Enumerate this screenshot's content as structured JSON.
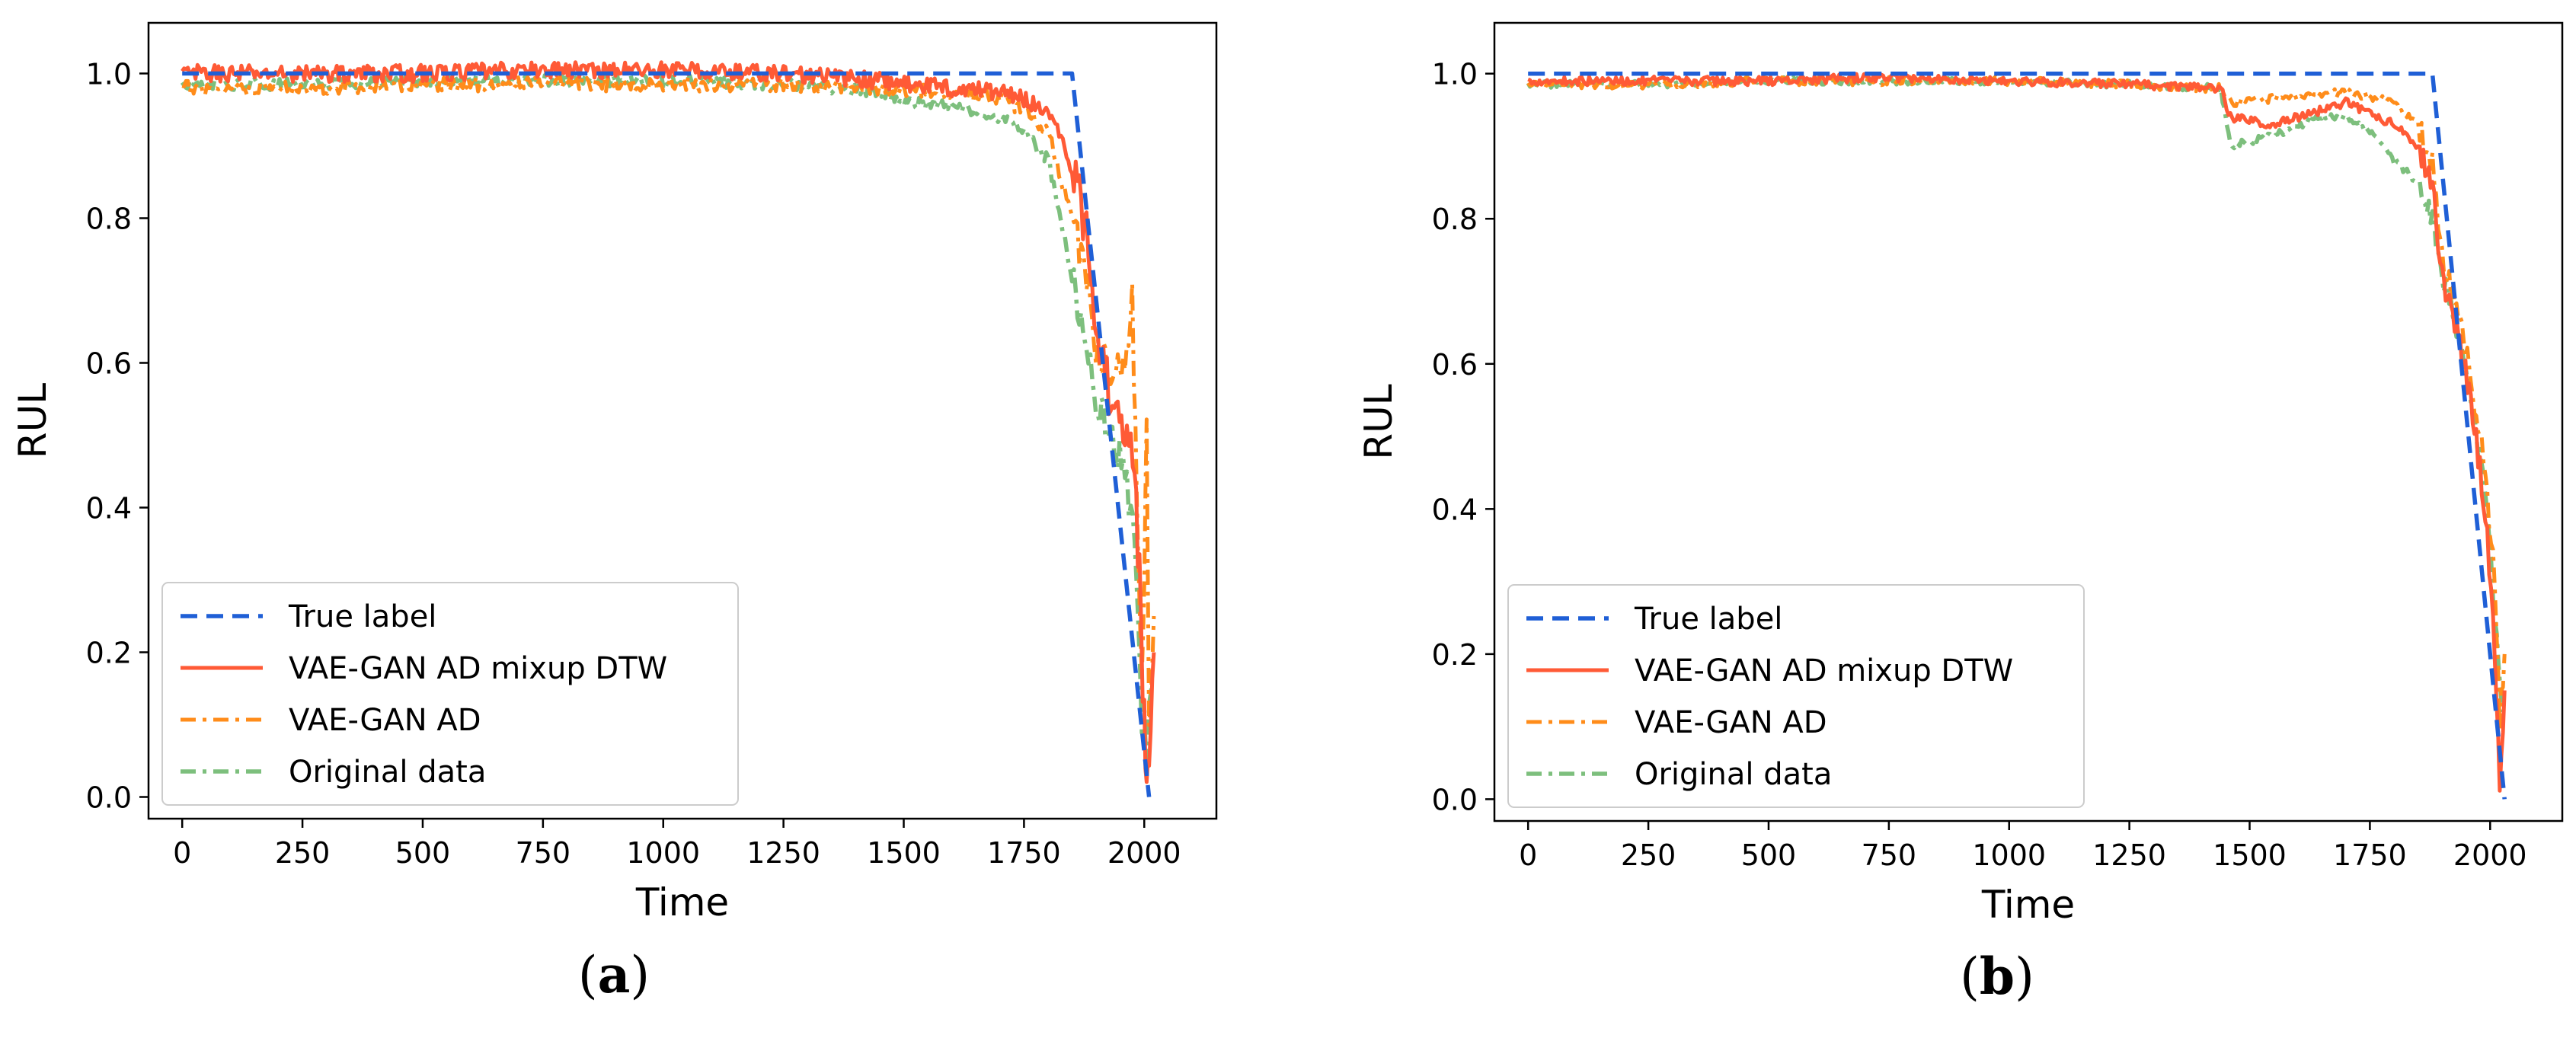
{
  "chart_data": [
    {
      "type": "line",
      "panel": "a",
      "caption_open": "(",
      "caption_letter": "a",
      "caption_close": ")",
      "xlabel": "Time",
      "ylabel": "RUL",
      "xlim": [
        -70,
        2150
      ],
      "ylim": [
        -0.03,
        1.07
      ],
      "xticks": [
        0,
        250,
        500,
        750,
        1000,
        1250,
        1500,
        1750,
        2000
      ],
      "xtick_labels": [
        "0",
        "250",
        "500",
        "750",
        "1000",
        "1250",
        "1500",
        "1750",
        "2000"
      ],
      "yticks": [
        0.0,
        0.2,
        0.4,
        0.6,
        0.8,
        1.0
      ],
      "ytick_labels": [
        "0.0",
        "0.2",
        "0.4",
        "0.6",
        "0.8",
        "1.0"
      ],
      "legend_position": "lower-left",
      "series": [
        {
          "name": "True label",
          "color": "#1f5fd6",
          "style": "dashed",
          "x": [
            0,
            1850,
            2010
          ],
          "y": [
            1.0,
            1.0,
            0.0
          ]
        },
        {
          "name": "VAE-GAN AD mixup DTW",
          "color": "#ff5a36",
          "style": "solid",
          "x": [
            0,
            250,
            500,
            750,
            1000,
            1250,
            1450,
            1600,
            1700,
            1750,
            1800,
            1850,
            1880,
            1900,
            1930,
            1960,
            1980,
            1990,
            2000,
            2005,
            2010,
            2020
          ],
          "y": [
            1.0,
            1.0,
            1.0,
            1.005,
            1.005,
            1.0,
            0.99,
            0.98,
            0.975,
            0.965,
            0.95,
            0.87,
            0.78,
            0.66,
            0.55,
            0.52,
            0.45,
            0.3,
            0.1,
            0.0,
            0.05,
            0.2
          ],
          "noise": 0.012
        },
        {
          "name": "VAE-GAN AD",
          "color": "#ff8c1a",
          "style": "dashdot",
          "x": [
            0,
            250,
            500,
            750,
            1000,
            1250,
            1450,
            1600,
            1700,
            1750,
            1800,
            1850,
            1880,
            1900,
            1930,
            1960,
            1975,
            1985,
            1995,
            2000,
            2005,
            2010,
            2020
          ],
          "y": [
            0.98,
            0.98,
            0.985,
            0.985,
            0.985,
            0.985,
            0.98,
            0.975,
            0.965,
            0.95,
            0.92,
            0.8,
            0.72,
            0.62,
            0.6,
            0.58,
            0.7,
            0.4,
            0.15,
            0.3,
            0.5,
            0.1,
            0.25
          ],
          "noise": 0.01
        },
        {
          "name": "Original data",
          "color": "#7dbf7d",
          "style": "dashdot",
          "x": [
            0,
            250,
            500,
            750,
            1000,
            1250,
            1450,
            1500,
            1600,
            1700,
            1750,
            1800,
            1850,
            1880,
            1900,
            1930,
            1960,
            1980,
            1995,
            2005,
            2015
          ],
          "y": [
            0.985,
            0.985,
            0.99,
            0.99,
            0.99,
            0.985,
            0.975,
            0.96,
            0.955,
            0.94,
            0.92,
            0.88,
            0.72,
            0.62,
            0.55,
            0.5,
            0.45,
            0.35,
            0.1,
            0.05,
            0.15
          ],
          "noise": 0.008
        }
      ]
    },
    {
      "type": "line",
      "panel": "b",
      "caption_open": "(",
      "caption_letter": "b",
      "caption_close": ")",
      "xlabel": "Time",
      "ylabel": "RUL",
      "xlim": [
        -70,
        2150
      ],
      "ylim": [
        -0.03,
        1.07
      ],
      "xticks": [
        0,
        250,
        500,
        750,
        1000,
        1250,
        1500,
        1750,
        2000
      ],
      "xtick_labels": [
        "0",
        "250",
        "500",
        "750",
        "1000",
        "1250",
        "1500",
        "1750",
        "2000"
      ],
      "yticks": [
        0.0,
        0.2,
        0.4,
        0.6,
        0.8,
        1.0
      ],
      "ytick_labels": [
        "0.0",
        "0.2",
        "0.4",
        "0.6",
        "0.8",
        "1.0"
      ],
      "legend_position": "lower-left",
      "series": [
        {
          "name": "True label",
          "color": "#1f5fd6",
          "style": "dashed",
          "x": [
            0,
            1880,
            2030
          ],
          "y": [
            1.0,
            1.0,
            0.0
          ]
        },
        {
          "name": "VAE-GAN AD mixup DTW",
          "color": "#ff5a36",
          "style": "solid",
          "x": [
            0,
            250,
            500,
            750,
            1000,
            1250,
            1440,
            1460,
            1550,
            1650,
            1700,
            1800,
            1850,
            1880,
            1900,
            1930,
            1960,
            1990,
            2010,
            2020,
            2030
          ],
          "y": [
            0.99,
            0.99,
            0.99,
            0.995,
            0.99,
            0.985,
            0.98,
            0.94,
            0.93,
            0.95,
            0.96,
            0.93,
            0.9,
            0.85,
            0.72,
            0.65,
            0.55,
            0.4,
            0.2,
            0.02,
            0.15
          ],
          "noise": 0.006
        },
        {
          "name": "VAE-GAN AD",
          "color": "#ff8c1a",
          "style": "dashdot",
          "x": [
            0,
            250,
            500,
            750,
            1000,
            1250,
            1440,
            1460,
            1550,
            1650,
            1700,
            1800,
            1850,
            1880,
            1900,
            1930,
            1960,
            1990,
            2010,
            2020,
            2030
          ],
          "y": [
            0.985,
            0.985,
            0.99,
            0.99,
            0.99,
            0.985,
            0.98,
            0.96,
            0.965,
            0.97,
            0.975,
            0.96,
            0.93,
            0.88,
            0.75,
            0.68,
            0.58,
            0.45,
            0.3,
            0.1,
            0.2
          ],
          "noise": 0.006
        },
        {
          "name": "Original data",
          "color": "#7dbf7d",
          "style": "dashdot",
          "x": [
            0,
            250,
            500,
            750,
            1000,
            1250,
            1440,
            1460,
            1550,
            1650,
            1700,
            1750,
            1800,
            1850,
            1880,
            1900,
            1930,
            1960,
            1990,
            2010,
            2025
          ],
          "y": [
            0.985,
            0.985,
            0.99,
            0.99,
            0.99,
            0.985,
            0.98,
            0.9,
            0.915,
            0.94,
            0.94,
            0.92,
            0.88,
            0.85,
            0.8,
            0.72,
            0.65,
            0.55,
            0.42,
            0.25,
            0.12
          ],
          "noise": 0.005
        }
      ]
    }
  ]
}
